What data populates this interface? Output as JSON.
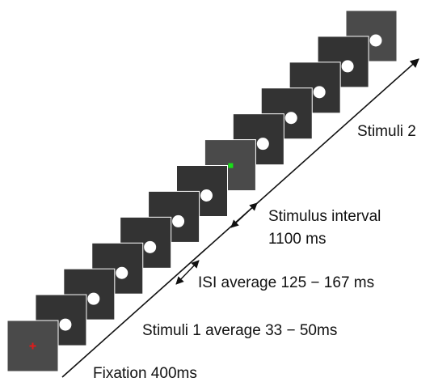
{
  "labels": {
    "stimuli_2": "Stimuli 2",
    "stimulus_interval_line1": "Stimulus interval",
    "stimulus_interval_line2": "1100 ms",
    "isi": "ISI average 125 − 167 ms",
    "stimuli_1": "Stimuli 1 average 33 − 50ms",
    "fixation": "Fixation 400ms"
  },
  "frames": [
    {
      "kind": "fixation"
    },
    {
      "kind": "stimulus"
    },
    {
      "kind": "stimulus"
    },
    {
      "kind": "stimulus"
    },
    {
      "kind": "stimulus"
    },
    {
      "kind": "stimulus"
    },
    {
      "kind": "stimulus"
    },
    {
      "kind": "cue"
    },
    {
      "kind": "stimulus"
    },
    {
      "kind": "stimulus"
    },
    {
      "kind": "stimulus"
    },
    {
      "kind": "stimulus"
    },
    {
      "kind": "blank"
    }
  ],
  "colors": {
    "frame_dark": "#333333",
    "frame_light": "#4a4a4a",
    "stimulus_disc": "#ffffff",
    "fixation_cross": "#e01b1b",
    "cue_square": "#18e018",
    "timeline": "#111111"
  }
}
